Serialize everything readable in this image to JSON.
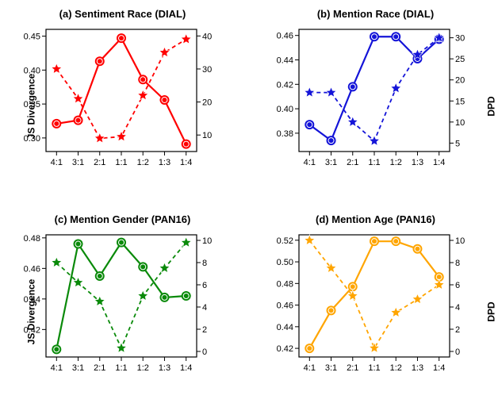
{
  "background_color": "#ffffff",
  "axis_color": "#000000",
  "tick_fontsize": 11,
  "title_fontsize": 13,
  "label_fontsize": 12,
  "line_width_solid": 2.2,
  "line_width_dashed": 1.8,
  "marker_size": 6,
  "star_size": 7,
  "dash_pattern": "5,4",
  "y_label_left": "JS Divergence",
  "y_label_right": "DPD",
  "x_categories": [
    "4:1",
    "3:1",
    "2:1",
    "1:1",
    "1:2",
    "1:3",
    "1:4"
  ],
  "charts": [
    {
      "title": "(a) Sentiment Race (DIAL)",
      "color": "#ff0000",
      "y1_min": 0.28,
      "y1_max": 0.46,
      "y1_ticks": [
        0.3,
        0.35,
        0.4,
        0.45
      ],
      "y2_min": 5,
      "y2_max": 42,
      "y2_ticks": [
        10,
        20,
        30,
        40
      ],
      "series1_solid": [
        0.321,
        0.326,
        0.413,
        0.447,
        0.386,
        0.356,
        0.291
      ],
      "series2_dashed": [
        30,
        21,
        9,
        9.5,
        22,
        35,
        39
      ],
      "show_y_label_left": true,
      "show_y_label_right": false
    },
    {
      "title": "(b) Mention Race (DIAL)",
      "color": "#1414d8",
      "y1_min": 0.365,
      "y1_max": 0.465,
      "y1_ticks": [
        0.38,
        0.4,
        0.42,
        0.44,
        0.46
      ],
      "y2_min": 3,
      "y2_max": 32,
      "y2_ticks": [
        5,
        10,
        15,
        20,
        25,
        30
      ],
      "series1_solid": [
        0.387,
        0.374,
        0.418,
        0.459,
        0.459,
        0.441,
        0.457
      ],
      "series2_dashed": [
        17,
        17,
        10,
        5.5,
        18,
        26,
        30
      ],
      "show_y_label_left": false,
      "show_y_label_right": true
    },
    {
      "title": "(c) Mention Gender (PAN16)",
      "color": "#0a8a0a",
      "y1_min": 0.402,
      "y1_max": 0.482,
      "y1_ticks": [
        0.42,
        0.44,
        0.46,
        0.48
      ],
      "y2_min": -0.5,
      "y2_max": 10.5,
      "y2_ticks": [
        0,
        2,
        4,
        6,
        8,
        10
      ],
      "series1_solid": [
        0.407,
        0.476,
        0.455,
        0.477,
        0.461,
        0.441,
        0.442
      ],
      "series2_dashed": [
        8.0,
        6.2,
        4.5,
        0.3,
        5.0,
        7.5,
        9.8
      ],
      "show_y_label_left": true,
      "show_y_label_right": false
    },
    {
      "title": "(d) Mention Age (PAN16)",
      "color": "#ffa500",
      "y1_min": 0.412,
      "y1_max": 0.525,
      "y1_ticks": [
        0.42,
        0.44,
        0.46,
        0.48,
        0.5,
        0.52
      ],
      "y2_min": -0.5,
      "y2_max": 10.5,
      "y2_ticks": [
        0,
        2,
        4,
        6,
        8,
        10
      ],
      "series1_solid": [
        0.42,
        0.455,
        0.477,
        0.519,
        0.519,
        0.512,
        0.486
      ],
      "series2_dashed": [
        10,
        7.5,
        5.0,
        0.3,
        3.5,
        4.7,
        6.0
      ],
      "show_y_label_left": false,
      "show_y_label_right": true
    }
  ]
}
